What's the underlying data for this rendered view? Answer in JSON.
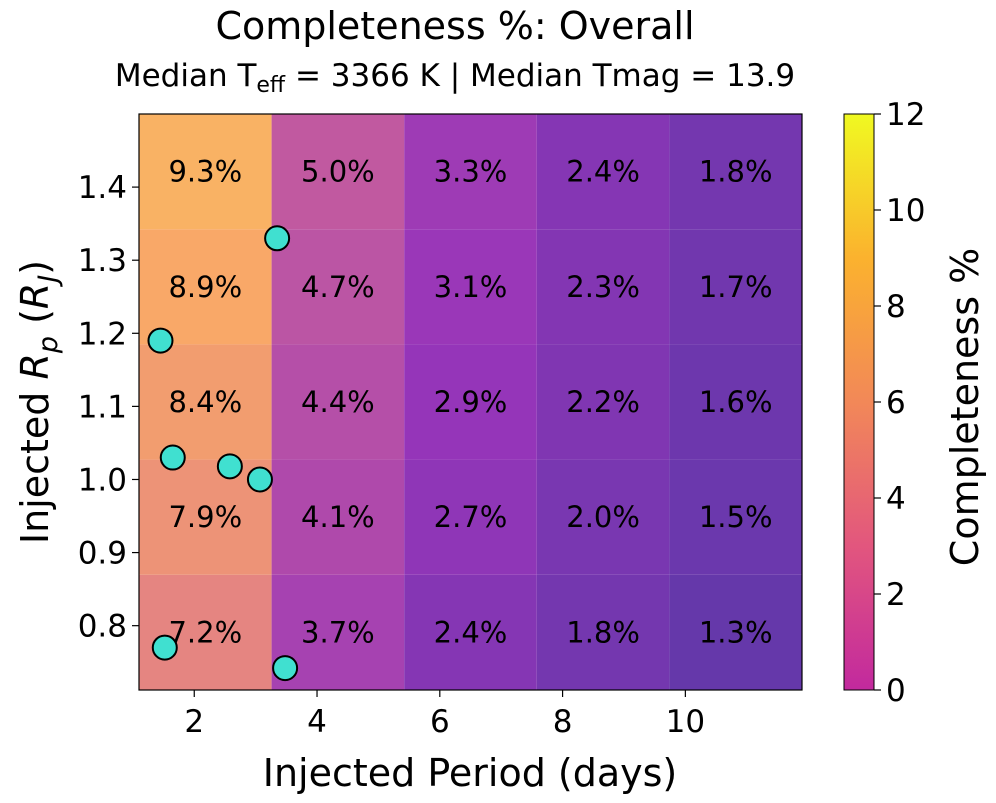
{
  "chart_data": {
    "type": "heatmap",
    "title": "Completeness %: Overall",
    "subtitle": {
      "teff_prefix": "Median T",
      "teff_sub": "eff",
      "teff_rest": " = 3366 K | Median Tmag = 13.9"
    },
    "xlabel": "Injected Period (days)",
    "ylabel_prefix": "Injected ",
    "ylabel_var": "R",
    "ylabel_var_sub": "p",
    "ylabel_unit_var": "R",
    "ylabel_unit_sub": "J",
    "xlim": [
      1.1,
      11.9
    ],
    "ylim": [
      0.712,
      1.5
    ],
    "x_edges": [
      1.1,
      3.26,
      5.42,
      7.58,
      9.74,
      11.9
    ],
    "y_edges": [
      0.712,
      0.8696,
      1.0272,
      1.1848,
      1.3424,
      1.5
    ],
    "x_ticks": [
      2,
      4,
      6,
      8,
      10
    ],
    "x_tick_labels": [
      "2",
      "4",
      "6",
      "8",
      "10"
    ],
    "y_ticks": [
      0.8,
      0.9,
      1.0,
      1.1,
      1.2,
      1.3,
      1.4
    ],
    "y_tick_labels": [
      "0.8",
      "0.9",
      "1.0",
      "1.1",
      "1.2",
      "1.3",
      "1.4"
    ],
    "values": [
      [
        7.2,
        3.7,
        2.4,
        1.8,
        1.3
      ],
      [
        7.9,
        4.1,
        2.7,
        2.0,
        1.5
      ],
      [
        8.4,
        4.4,
        2.9,
        2.2,
        1.6
      ],
      [
        8.9,
        4.7,
        3.1,
        2.3,
        1.7
      ],
      [
        9.3,
        5.0,
        3.3,
        2.4,
        1.8
      ]
    ],
    "cell_labels": [
      [
        "7.2%",
        "3.7%",
        "2.4%",
        "1.8%",
        "1.3%"
      ],
      [
        "7.9%",
        "4.1%",
        "2.7%",
        "2.0%",
        "1.5%"
      ],
      [
        "8.4%",
        "4.4%",
        "2.9%",
        "2.2%",
        "1.6%"
      ],
      [
        "8.9%",
        "4.7%",
        "3.1%",
        "2.3%",
        "1.7%"
      ],
      [
        "9.3%",
        "5.0%",
        "3.3%",
        "2.4%",
        "1.8%"
      ]
    ],
    "detected_planets": [
      {
        "period": 1.52,
        "radius": 0.77
      },
      {
        "period": 3.48,
        "radius": 0.742
      },
      {
        "period": 1.45,
        "radius": 1.19
      },
      {
        "period": 3.35,
        "radius": 1.33
      },
      {
        "period": 1.65,
        "radius": 1.03
      },
      {
        "period": 2.58,
        "radius": 1.018
      },
      {
        "period": 3.07,
        "radius": 1.0
      }
    ],
    "colorbar": {
      "label": "Completeness %",
      "min": 0,
      "max": 12,
      "ticks": [
        0,
        2,
        4,
        6,
        8,
        10,
        12
      ],
      "tick_labels": [
        "0",
        "2",
        "4",
        "6",
        "8",
        "10",
        "12"
      ],
      "colormap": "plasma"
    },
    "colors": {
      "marker_fill": "#40e0d0",
      "marker_edge": "#000000",
      "text": "#000000"
    }
  }
}
